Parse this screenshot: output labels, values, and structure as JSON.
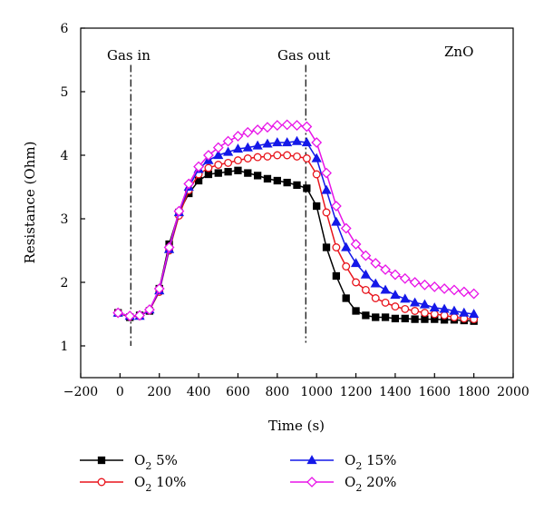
{
  "chart_data": {
    "type": "line",
    "title": "",
    "xlabel": "Time (s)",
    "ylabel": "Resistance (Ohm)",
    "xlim": [
      -200,
      2000
    ],
    "ylim": [
      0.5,
      6
    ],
    "x_ticks": [
      "-200",
      "0",
      "200",
      "400",
      "600",
      "800",
      "1000",
      "1200",
      "1400",
      "1600",
      "1800",
      "2000"
    ],
    "y_ticks": [
      "1",
      "2",
      "3",
      "4",
      "5",
      "6"
    ],
    "grid": false,
    "annotations": {
      "gas_in": {
        "text": "Gas in",
        "x": 55
      },
      "gas_out": {
        "text": "Gas out",
        "x": 945
      },
      "material": {
        "text": "ZnO"
      }
    },
    "legend_position": "bottom",
    "x": [
      -10,
      50,
      100,
      150,
      200,
      250,
      300,
      350,
      400,
      450,
      500,
      550,
      600,
      650,
      700,
      750,
      800,
      850,
      900,
      950,
      1000,
      1050,
      1100,
      1150,
      1200,
      1250,
      1300,
      1350,
      1400,
      1450,
      1500,
      1550,
      1600,
      1650,
      1700,
      1750,
      1800
    ],
    "series": [
      {
        "name": "O2 5%",
        "legend_main": "O",
        "legend_sub": "2",
        "legend_tail": " 5%",
        "color": "#000000",
        "marker": "square",
        "filled": true,
        "values": [
          1.52,
          1.45,
          1.48,
          1.55,
          1.9,
          2.6,
          3.1,
          3.4,
          3.6,
          3.7,
          3.72,
          3.74,
          3.76,
          3.72,
          3.68,
          3.63,
          3.6,
          3.57,
          3.53,
          3.48,
          3.2,
          2.55,
          2.1,
          1.75,
          1.55,
          1.48,
          1.45,
          1.45,
          1.43,
          1.43,
          1.42,
          1.42,
          1.42,
          1.41,
          1.41,
          1.4,
          1.39
        ]
      },
      {
        "name": "O2 10%",
        "legend_main": "O",
        "legend_sub": "2",
        "legend_tail": " 10%",
        "color": "#e8141c",
        "marker": "circle",
        "filled": false,
        "values": [
          1.52,
          1.46,
          1.47,
          1.56,
          1.85,
          2.5,
          3.05,
          3.45,
          3.7,
          3.8,
          3.85,
          3.88,
          3.92,
          3.95,
          3.97,
          3.98,
          4.0,
          4.0,
          3.98,
          3.95,
          3.7,
          3.1,
          2.55,
          2.25,
          2.0,
          1.88,
          1.75,
          1.68,
          1.62,
          1.58,
          1.55,
          1.52,
          1.5,
          1.48,
          1.45,
          1.43,
          1.42
        ]
      },
      {
        "name": "O2 15%",
        "legend_main": "O",
        "legend_sub": "2",
        "legend_tail": " 15%",
        "color": "#1418e8",
        "marker": "triangle",
        "filled": true,
        "values": [
          1.52,
          1.47,
          1.47,
          1.57,
          1.87,
          2.52,
          3.1,
          3.5,
          3.78,
          3.92,
          4.0,
          4.05,
          4.1,
          4.12,
          4.15,
          4.18,
          4.2,
          4.2,
          4.22,
          4.2,
          3.95,
          3.45,
          2.95,
          2.55,
          2.3,
          2.12,
          1.98,
          1.88,
          1.8,
          1.74,
          1.68,
          1.65,
          1.6,
          1.58,
          1.55,
          1.52,
          1.5
        ]
      },
      {
        "name": "O2 20%",
        "legend_main": "O",
        "legend_sub": "2",
        "legend_tail": " 20%",
        "color": "#e814e8",
        "marker": "diamond",
        "filled": false,
        "values": [
          1.52,
          1.47,
          1.48,
          1.57,
          1.9,
          2.55,
          3.12,
          3.55,
          3.82,
          4.0,
          4.12,
          4.22,
          4.3,
          4.36,
          4.4,
          4.44,
          4.47,
          4.48,
          4.47,
          4.45,
          4.2,
          3.72,
          3.2,
          2.85,
          2.6,
          2.42,
          2.3,
          2.2,
          2.12,
          2.06,
          2.0,
          1.96,
          1.93,
          1.9,
          1.88,
          1.85,
          1.82
        ]
      }
    ]
  }
}
